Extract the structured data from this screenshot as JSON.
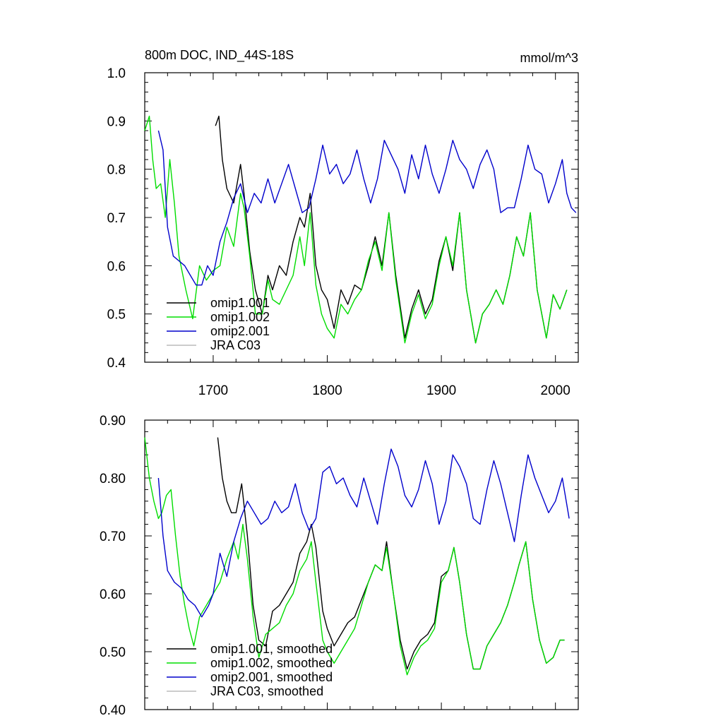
{
  "chart_data": [
    {
      "type": "line",
      "title": "800m DOC, IND_44S-18S",
      "units": "mmol/m^3",
      "xlabel": "",
      "ylabel": "",
      "xlim": [
        1640,
        2020
      ],
      "ylim": [
        0.4,
        1.0
      ],
      "x_ticks": [
        "1700",
        "1800",
        "1900",
        "2000"
      ],
      "y_ticks": [
        "0.4",
        "0.5",
        "0.6",
        "0.7",
        "0.8",
        "0.9",
        "1.0"
      ],
      "legend_position": "bottom-left",
      "grid": false,
      "series": [
        {
          "name": "omip1.001",
          "color": "#000000",
          "x": [
            1702,
            1705,
            1708,
            1712,
            1718,
            1724,
            1727,
            1732,
            1737,
            1743,
            1748,
            1752,
            1758,
            1764,
            1770,
            1776,
            1780,
            1785,
            1790,
            1795,
            1800,
            1806,
            1812,
            1818,
            1824,
            1830,
            1836,
            1842,
            1848,
            1854,
            1860,
            1868,
            1874,
            1880,
            1886,
            1892,
            1898,
            1904,
            1910,
            1916,
            1922,
            1930,
            1936,
            1942,
            1948,
            1954,
            1960,
            1966,
            1972,
            1978,
            1984,
            1992,
            1998,
            2004,
            2010
          ],
          "y": [
            0.89,
            0.91,
            0.82,
            0.76,
            0.73,
            0.81,
            0.75,
            0.63,
            0.55,
            0.5,
            0.58,
            0.55,
            0.6,
            0.58,
            0.65,
            0.7,
            0.68,
            0.75,
            0.6,
            0.55,
            0.53,
            0.47,
            0.55,
            0.52,
            0.56,
            0.55,
            0.6,
            0.66,
            0.6,
            0.71,
            0.58,
            0.45,
            0.51,
            0.55,
            0.5,
            0.53,
            0.61,
            0.66,
            0.59,
            0.71,
            0.55,
            0.44,
            0.5,
            0.52,
            0.55,
            0.52,
            0.58,
            0.66,
            0.62,
            0.71,
            0.55,
            0.45,
            0.54,
            0.51,
            0.55
          ]
        },
        {
          "name": "omip1.002",
          "color": "#00dd00",
          "x": [
            1640,
            1644,
            1647,
            1650,
            1654,
            1658,
            1662,
            1666,
            1670,
            1676,
            1682,
            1688,
            1694,
            1700,
            1706,
            1712,
            1718,
            1724,
            1727,
            1732,
            1737,
            1743,
            1748,
            1752,
            1758,
            1764,
            1770,
            1776,
            1780,
            1785,
            1790,
            1795,
            1800,
            1806,
            1812,
            1818,
            1824,
            1830,
            1836,
            1842,
            1848,
            1854,
            1860,
            1868,
            1874,
            1880,
            1886,
            1892,
            1898,
            1904,
            1910,
            1916,
            1922,
            1930,
            1936,
            1942,
            1948,
            1954,
            1960,
            1966,
            1972,
            1978,
            1984,
            1992,
            1998,
            2004,
            2010
          ],
          "y": [
            0.88,
            0.91,
            0.82,
            0.76,
            0.77,
            0.7,
            0.82,
            0.73,
            0.62,
            0.55,
            0.49,
            0.6,
            0.57,
            0.59,
            0.6,
            0.68,
            0.64,
            0.75,
            0.72,
            0.62,
            0.5,
            0.5,
            0.57,
            0.53,
            0.52,
            0.55,
            0.58,
            0.66,
            0.6,
            0.71,
            0.56,
            0.5,
            0.47,
            0.45,
            0.52,
            0.5,
            0.53,
            0.55,
            0.61,
            0.65,
            0.59,
            0.71,
            0.57,
            0.44,
            0.5,
            0.54,
            0.49,
            0.52,
            0.6,
            0.66,
            0.6,
            0.71,
            0.55,
            0.44,
            0.5,
            0.52,
            0.55,
            0.52,
            0.58,
            0.66,
            0.62,
            0.71,
            0.55,
            0.45,
            0.54,
            0.51,
            0.55
          ]
        },
        {
          "name": "omip2.001",
          "color": "#0000cc",
          "x": [
            1652,
            1656,
            1660,
            1665,
            1670,
            1675,
            1680,
            1685,
            1690,
            1695,
            1700,
            1706,
            1712,
            1718,
            1724,
            1730,
            1736,
            1742,
            1748,
            1754,
            1760,
            1766,
            1772,
            1778,
            1784,
            1790,
            1796,
            1802,
            1808,
            1814,
            1820,
            1826,
            1832,
            1838,
            1844,
            1850,
            1856,
            1862,
            1868,
            1874,
            1880,
            1886,
            1892,
            1898,
            1904,
            1910,
            1916,
            1922,
            1928,
            1934,
            1940,
            1946,
            1952,
            1958,
            1964,
            1970,
            1976,
            1982,
            1988,
            1994,
            2000,
            2006,
            2010,
            2014,
            2018
          ],
          "y": [
            0.88,
            0.84,
            0.68,
            0.62,
            0.61,
            0.6,
            0.58,
            0.56,
            0.56,
            0.6,
            0.58,
            0.65,
            0.69,
            0.74,
            0.77,
            0.71,
            0.75,
            0.73,
            0.78,
            0.73,
            0.77,
            0.81,
            0.76,
            0.71,
            0.72,
            0.78,
            0.85,
            0.79,
            0.81,
            0.77,
            0.79,
            0.84,
            0.78,
            0.73,
            0.78,
            0.86,
            0.83,
            0.8,
            0.75,
            0.83,
            0.78,
            0.85,
            0.79,
            0.75,
            0.8,
            0.86,
            0.82,
            0.8,
            0.76,
            0.81,
            0.84,
            0.8,
            0.71,
            0.72,
            0.72,
            0.78,
            0.85,
            0.8,
            0.79,
            0.73,
            0.77,
            0.82,
            0.75,
            0.72,
            0.71
          ]
        },
        {
          "name": "JRA C03",
          "color": "#bbbbbb",
          "x": [],
          "y": []
        }
      ]
    },
    {
      "type": "line",
      "title": "",
      "xlabel": "",
      "ylabel": "",
      "xlim": [
        1640,
        2020
      ],
      "ylim": [
        0.4,
        0.9
      ],
      "x_ticks": [],
      "y_ticks": [
        "0.40",
        "0.50",
        "0.60",
        "0.70",
        "0.80",
        "0.90"
      ],
      "legend_position": "bottom-left",
      "grid": false,
      "series": [
        {
          "name": "omip1.001, smoothed",
          "color": "#000000",
          "x": [
            1704,
            1708,
            1712,
            1716,
            1720,
            1725,
            1730,
            1735,
            1740,
            1746,
            1752,
            1758,
            1764,
            1770,
            1776,
            1782,
            1786,
            1790,
            1796,
            1800,
            1806,
            1812,
            1818,
            1824,
            1830,
            1836,
            1842,
            1848,
            1852,
            1858,
            1864,
            1870,
            1876,
            1882,
            1888,
            1894,
            1900,
            1906,
            1911,
            1916,
            1922,
            1928,
            1934,
            1940,
            1946,
            1952,
            1958,
            1964,
            1968,
            1974,
            1980,
            1986,
            1992,
            1998,
            2004,
            2008
          ],
          "y": [
            0.87,
            0.8,
            0.76,
            0.74,
            0.74,
            0.79,
            0.7,
            0.58,
            0.52,
            0.51,
            0.57,
            0.58,
            0.6,
            0.62,
            0.67,
            0.69,
            0.72,
            0.68,
            0.57,
            0.54,
            0.51,
            0.53,
            0.55,
            0.56,
            0.59,
            0.62,
            0.65,
            0.64,
            0.69,
            0.6,
            0.52,
            0.47,
            0.5,
            0.52,
            0.53,
            0.55,
            0.63,
            0.64,
            0.68,
            0.62,
            0.53,
            0.47,
            0.47,
            0.51,
            0.53,
            0.55,
            0.58,
            0.62,
            0.65,
            0.69,
            0.59,
            0.52,
            0.48,
            0.49,
            0.52,
            0.52
          ]
        },
        {
          "name": "omip1.002, smoothed",
          "color": "#00dd00",
          "x": [
            1640,
            1644,
            1648,
            1652,
            1655,
            1659,
            1663,
            1667,
            1671,
            1675,
            1679,
            1683,
            1688,
            1694,
            1700,
            1706,
            1712,
            1718,
            1722,
            1726,
            1730,
            1735,
            1740,
            1746,
            1752,
            1758,
            1764,
            1770,
            1776,
            1782,
            1786,
            1790,
            1796,
            1800,
            1806,
            1812,
            1818,
            1824,
            1830,
            1836,
            1842,
            1848,
            1852,
            1858,
            1864,
            1870,
            1876,
            1882,
            1888,
            1894,
            1900,
            1906,
            1911,
            1916,
            1922,
            1928,
            1934,
            1940,
            1946,
            1952,
            1958,
            1964,
            1968,
            1974,
            1980,
            1986,
            1992,
            1998,
            2004,
            2008
          ],
          "y": [
            0.87,
            0.8,
            0.76,
            0.73,
            0.74,
            0.77,
            0.78,
            0.7,
            0.63,
            0.58,
            0.54,
            0.51,
            0.56,
            0.58,
            0.6,
            0.62,
            0.66,
            0.69,
            0.66,
            0.72,
            0.66,
            0.56,
            0.49,
            0.53,
            0.54,
            0.55,
            0.58,
            0.6,
            0.64,
            0.66,
            0.69,
            0.62,
            0.52,
            0.5,
            0.48,
            0.5,
            0.52,
            0.54,
            0.58,
            0.62,
            0.65,
            0.64,
            0.68,
            0.6,
            0.51,
            0.46,
            0.49,
            0.51,
            0.52,
            0.54,
            0.62,
            0.64,
            0.68,
            0.62,
            0.53,
            0.47,
            0.47,
            0.51,
            0.53,
            0.55,
            0.58,
            0.62,
            0.65,
            0.69,
            0.59,
            0.52,
            0.48,
            0.49,
            0.52,
            0.52
          ]
        },
        {
          "name": "omip2.001, smoothed",
          "color": "#0000cc",
          "x": [
            1652,
            1656,
            1660,
            1666,
            1672,
            1678,
            1684,
            1690,
            1696,
            1700,
            1706,
            1712,
            1718,
            1724,
            1730,
            1736,
            1742,
            1748,
            1754,
            1760,
            1766,
            1772,
            1778,
            1784,
            1790,
            1796,
            1802,
            1808,
            1814,
            1820,
            1826,
            1832,
            1838,
            1844,
            1850,
            1856,
            1862,
            1868,
            1874,
            1880,
            1886,
            1892,
            1898,
            1904,
            1910,
            1916,
            1922,
            1928,
            1934,
            1940,
            1946,
            1952,
            1958,
            1964,
            1970,
            1976,
            1982,
            1988,
            1994,
            2000,
            2006,
            2012
          ],
          "y": [
            0.8,
            0.7,
            0.64,
            0.62,
            0.61,
            0.59,
            0.58,
            0.56,
            0.58,
            0.6,
            0.67,
            0.63,
            0.69,
            0.73,
            0.76,
            0.74,
            0.72,
            0.73,
            0.76,
            0.74,
            0.75,
            0.79,
            0.74,
            0.71,
            0.73,
            0.81,
            0.82,
            0.79,
            0.8,
            0.77,
            0.75,
            0.8,
            0.76,
            0.72,
            0.79,
            0.85,
            0.82,
            0.77,
            0.75,
            0.78,
            0.83,
            0.79,
            0.72,
            0.76,
            0.84,
            0.82,
            0.79,
            0.73,
            0.72,
            0.78,
            0.83,
            0.79,
            0.74,
            0.69,
            0.77,
            0.84,
            0.8,
            0.77,
            0.74,
            0.76,
            0.8,
            0.73
          ]
        },
        {
          "name": "JRA C03, smoothed",
          "color": "#bbbbbb",
          "x": [],
          "y": []
        }
      ]
    }
  ]
}
